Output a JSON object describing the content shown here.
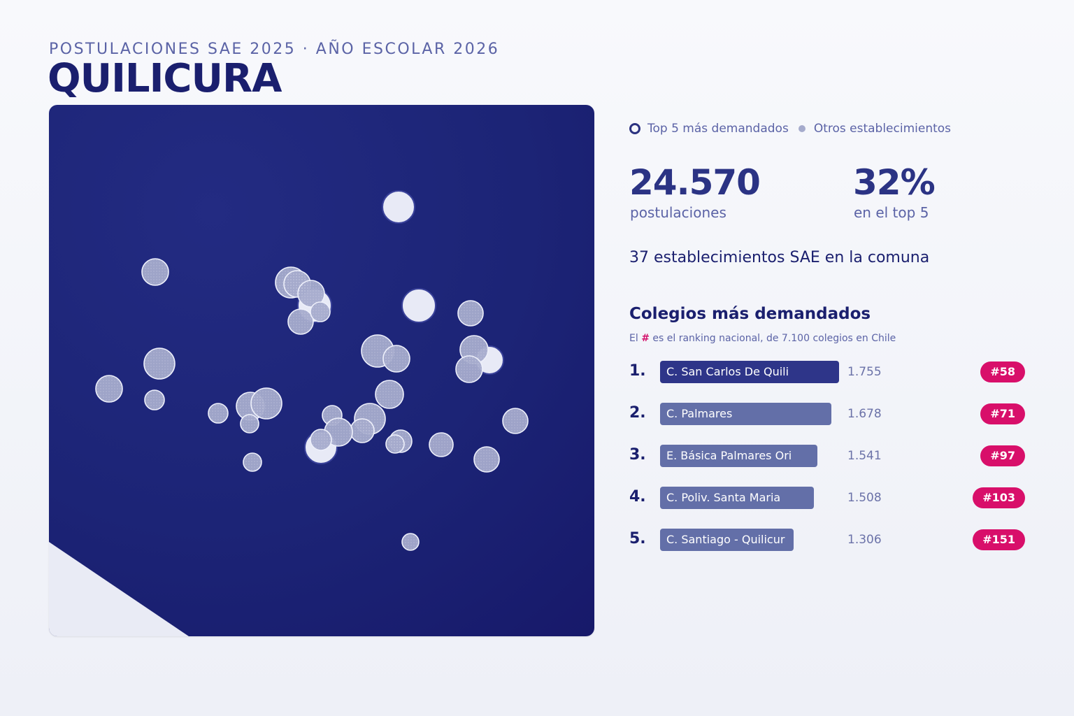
{
  "header": {
    "eyebrow": "POSTULACIONES SAE 2025 · AÑO ESCOLAR 2026",
    "title": "QUILICURA"
  },
  "legend": {
    "top5": "Top 5 más demandados",
    "others": "Otros establecimientos"
  },
  "stats": {
    "applications_value": "24.570",
    "applications_label": "postulaciones",
    "top5_share_value": "32%",
    "top5_share_label": "en el top 5",
    "establishments_text": "37 establecimientos SAE en la comuna"
  },
  "ranking": {
    "title": "Colegios más demandados",
    "subtitle_prefix": "El",
    "subtitle_hash": "#",
    "subtitle_suffix": "es el ranking nacional, de 7.100 colegios en Chile",
    "max_value": 1755,
    "items": [
      {
        "position": "1.",
        "name": "C. San Carlos De Quili",
        "value_text": "1.755",
        "value": 1755,
        "rank": "#58"
      },
      {
        "position": "2.",
        "name": "C. Palmares",
        "value_text": "1.678",
        "value": 1678,
        "rank": "#71"
      },
      {
        "position": "3.",
        "name": "E. Básica Palmares Ori",
        "value_text": "1.541",
        "value": 1541,
        "rank": "#97"
      },
      {
        "position": "4.",
        "name": "C. Poliv. Santa Maria",
        "value_text": "1.508",
        "value": 1508,
        "rank": "#103"
      },
      {
        "position": "5.",
        "name": "C. Santiago - Quilicur",
        "value_text": "1.306",
        "value": 1306,
        "rank": "#151"
      }
    ]
  },
  "colors": {
    "map_background": "#1c2476",
    "top5_marker": "#e8eaf6",
    "other_marker": "#a5abcc",
    "accent": "#d80f6a",
    "primary": "#1a1f6e"
  }
}
